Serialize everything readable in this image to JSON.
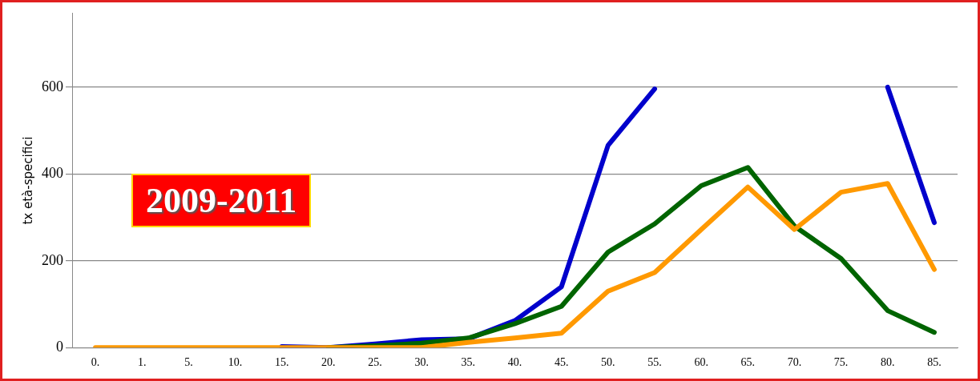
{
  "chart_data": {
    "type": "line",
    "ylabel": "tx età-specifici",
    "categories": [
      "0.",
      "1.",
      "5.",
      "10.",
      "15.",
      "20.",
      "25.",
      "30.",
      "35.",
      "40.",
      "45.",
      "50.",
      "55.",
      "60.",
      "65.",
      "70.",
      "75.",
      "80.",
      "85."
    ],
    "series": [
      {
        "color": "#0000cc",
        "values": [
          null,
          null,
          null,
          null,
          2,
          0,
          8,
          18,
          20,
          62,
          140,
          466,
          596,
          null,
          null,
          null,
          null,
          600,
          288
        ]
      },
      {
        "color": "#006400",
        "values": [
          null,
          null,
          null,
          null,
          null,
          0,
          4,
          10,
          22,
          55,
          95,
          220,
          285,
          373,
          415,
          280,
          205,
          85,
          35
        ]
      },
      {
        "color": "#ff9900",
        "values": [
          0,
          0,
          0,
          0,
          0,
          0,
          0,
          0,
          12,
          22,
          33,
          130,
          173,
          272,
          370,
          272,
          358,
          378,
          180
        ]
      }
    ],
    "ylim": [
      0,
      770
    ],
    "yticks": [
      0,
      200,
      400,
      600
    ],
    "grid": "y",
    "legend": false,
    "marker": "none",
    "line_style": "solid",
    "annotations": [
      "2009-2011"
    ]
  }
}
